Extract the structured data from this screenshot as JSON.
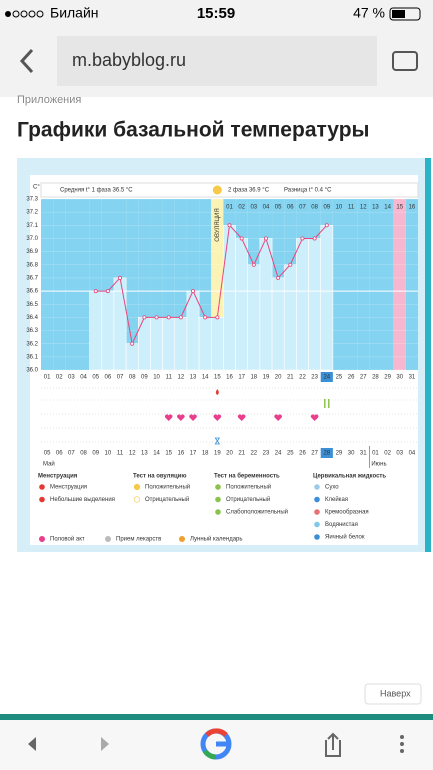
{
  "status_bar": {
    "carrier": "Билайн",
    "time": "15:59",
    "battery": "47 %"
  },
  "browser": {
    "url": "m.babyblog.ru"
  },
  "breadcrumb": "Приложения",
  "title": "Графики базальной температуры",
  "chart": {
    "type": "line",
    "unit": "С°",
    "annotations": [
      "Средняя t° 1 фаза 36.5 °C",
      "2 фаза 36.9 °C",
      "Разница t° 0.4 °C"
    ],
    "coverline": 36.6,
    "ovulation_label": "ОВУЛЯЦИЯ",
    "ovulation_index": 14,
    "categories": [
      "01",
      "02",
      "03",
      "04",
      "05",
      "06",
      "07",
      "08",
      "09",
      "10",
      "11",
      "12",
      "13",
      "14",
      "15",
      "16",
      "17",
      "18",
      "19",
      "20",
      "21",
      "22",
      "23",
      "24",
      "25",
      "26",
      "27",
      "28",
      "29",
      "30",
      "31"
    ],
    "post_ovulation_days": [
      "01",
      "02",
      "03",
      "04",
      "05",
      "06",
      "07",
      "08",
      "09",
      "10",
      "11",
      "12",
      "13",
      "14",
      "15",
      "16"
    ],
    "values": [
      null,
      null,
      null,
      null,
      36.6,
      36.6,
      36.7,
      36.2,
      36.4,
      36.4,
      36.4,
      36.4,
      36.6,
      36.4,
      36.4,
      37.1,
      37.0,
      36.8,
      37.0,
      36.7,
      36.8,
      37.0,
      37.0,
      37.1,
      null,
      null,
      null,
      null,
      null,
      null,
      null
    ],
    "color": "#e8457a",
    "bar_color": "#cdeefb",
    "ylim": [
      36.0,
      37.3
    ],
    "yticks": [
      {
        "value": 36.0,
        "label": "36.0"
      },
      36.1,
      36.2,
      36.3,
      36.4,
      36.5,
      36.6,
      36.7,
      36.8,
      36.9,
      {
        "value": 37.0,
        "label": "37.0"
      },
      37.1,
      37.2,
      37.3
    ],
    "grid": true,
    "today_index": 23,
    "pink_index": 29,
    "intercourse_days": [
      10,
      11,
      12,
      14,
      16,
      19,
      22
    ],
    "spotting_days": [
      14
    ],
    "pregnancy_test_days": [
      23
    ],
    "sticky_days": [
      14
    ],
    "dates": [
      "05",
      "06",
      "07",
      "08",
      "09",
      "10",
      "11",
      "12",
      "13",
      "14",
      "15",
      "16",
      "17",
      "18",
      "19",
      "20",
      "21",
      "22",
      "23",
      "24",
      "25",
      "26",
      "27",
      "28",
      "29",
      "30",
      "31",
      "01",
      "02",
      "03",
      "04"
    ],
    "red_dates": [
      1,
      2,
      8,
      9,
      15,
      16,
      22,
      29,
      30
    ],
    "months": [
      {
        "label": "Май",
        "index": 0
      },
      {
        "label": "Июнь",
        "index": 27
      }
    ]
  },
  "legend": [
    {
      "title": "Менструация",
      "items": [
        "Менструация",
        "Небольшие выделения"
      ]
    },
    {
      "title": "Тест на овуляцию",
      "items": [
        "Положительный",
        "Отрицательный"
      ]
    },
    {
      "title": "Тест на беременность",
      "items": [
        "Положительный",
        "Отрицательный",
        "Слабоположительный"
      ]
    },
    {
      "title": "Цервикальная жидкость",
      "items": [
        "Сухо",
        "Клейкая",
        "Кремообразная",
        "Водянистая",
        "Яичный белок"
      ]
    }
  ],
  "legend_extra": [
    "Половой акт",
    "Прием лекарств",
    "Лунный календарь"
  ],
  "back_to_top": "Наверх"
}
